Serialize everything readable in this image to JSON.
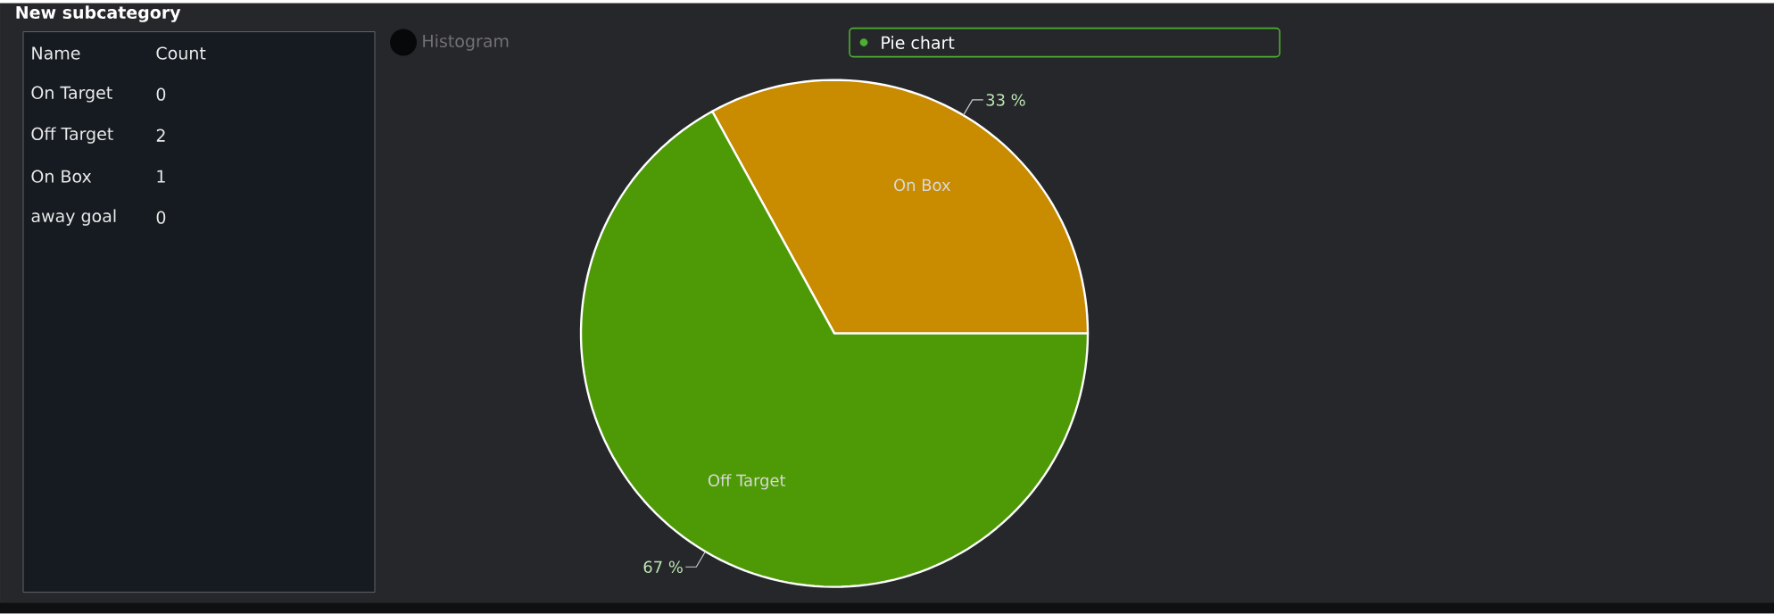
{
  "chart_data": {
    "type": "pie",
    "title": "New subcategory",
    "categories": [
      "On Box",
      "Off Target"
    ],
    "values": [
      33,
      67
    ],
    "value_labels": [
      "33 %",
      "67 %"
    ],
    "colors": [
      "#c98b00",
      "#4e9a06"
    ],
    "annotations": [
      "Name",
      "Count",
      "On Target",
      "0",
      "Off Target",
      "2",
      "On Box",
      "1",
      "away goal",
      "0",
      "Histogram",
      "Pie chart"
    ]
  }
}
